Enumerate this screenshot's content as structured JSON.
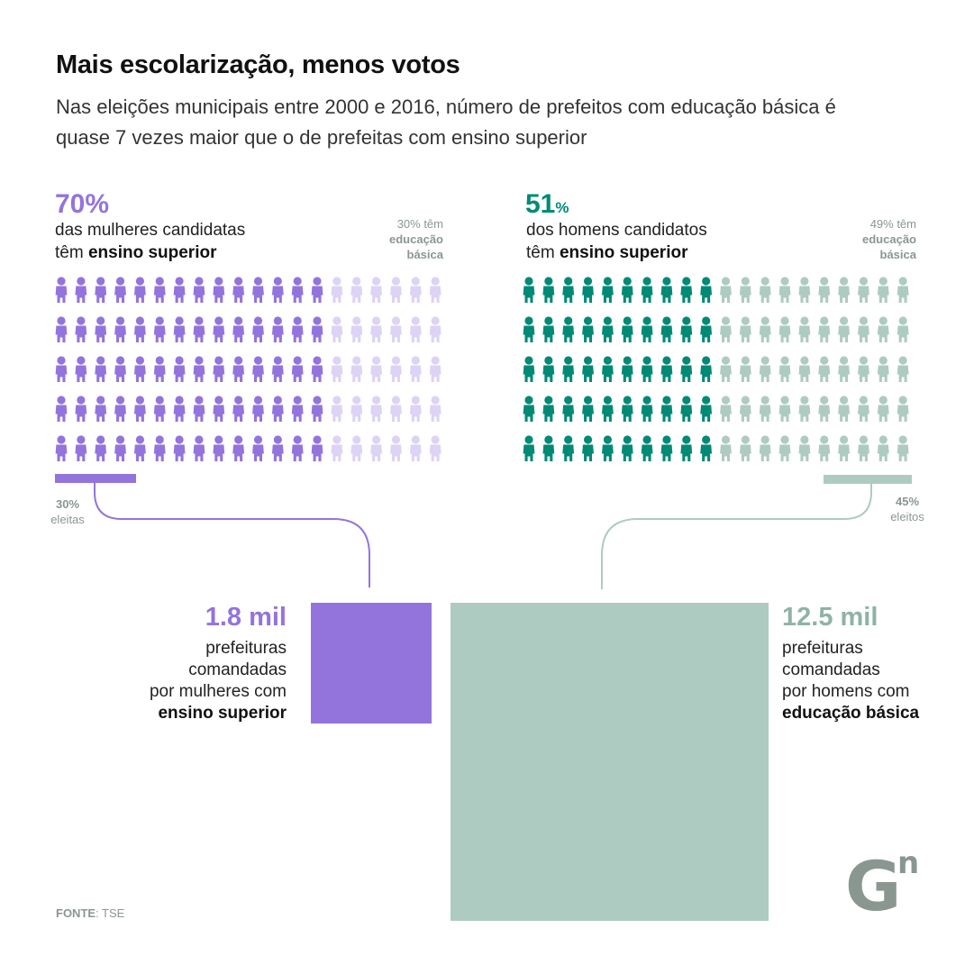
{
  "title": "Mais escolarização, menos votos",
  "subtitle": "Nas eleições municipais entre 2000 e 2016, número de prefeitos com educação básica é quase 7 vezes maior que o de prefeitas com ensino superior",
  "colors": {
    "women_dark": "#9374dc",
    "women_light": "#dcd3f5",
    "men_dark": "#008a76",
    "men_light": "#aecbc1",
    "gray_text": "#8a9790",
    "logo": "#8a9790"
  },
  "women": {
    "pct_value": "70",
    "pct_sign": "%",
    "desc_line1": "das mulheres candidatas",
    "desc_line2_pre": "têm ",
    "desc_line2_bold": "ensino superior",
    "other_line1": "30% têm",
    "other_line2": "educação",
    "other_line3": "básica",
    "elected_pct": "30%",
    "elected_label": "eleitas",
    "mil_value": "1.8 mil",
    "mil_line1": "prefeituras",
    "mil_line2": "comandadas",
    "mil_line3": "por mulheres com",
    "mil_line4_bold": "ensino superior"
  },
  "men": {
    "pct_value": "51",
    "pct_sign": "%",
    "desc_line1": "dos homens candidatos",
    "desc_line2_pre": "têm ",
    "desc_line2_bold": "ensino superior",
    "other_line1": "49% têm",
    "other_line2": "educação",
    "other_line3": "básica",
    "elected_pct": "45%",
    "elected_label": "eleitos",
    "mil_value": "12.5 mil",
    "mil_line1": "prefeituras",
    "mil_line2": "comandadas",
    "mil_line3": "por homens com",
    "mil_line4_bold": "educação básica"
  },
  "source_bold": "FONTE",
  "source_rest": ": TSE",
  "logo_letters": "G",
  "logo_sup": "n",
  "chart_data": {
    "type": "waffle",
    "women_grid": {
      "rows": 5,
      "cols": 20,
      "dark_count": 14,
      "dark_share": 0.7,
      "light_share": 0.3
    },
    "men_grid": {
      "rows": 5,
      "cols": 20,
      "dark_count": 10,
      "dark_share": 0.51,
      "light_share": 0.49
    },
    "women_elected_share": 0.3,
    "men_elected_share": 0.45,
    "prefeituras_mulheres_ensino_superior_mil": 1.8,
    "prefeituras_homens_educacao_basica_mil": 12.5
  }
}
